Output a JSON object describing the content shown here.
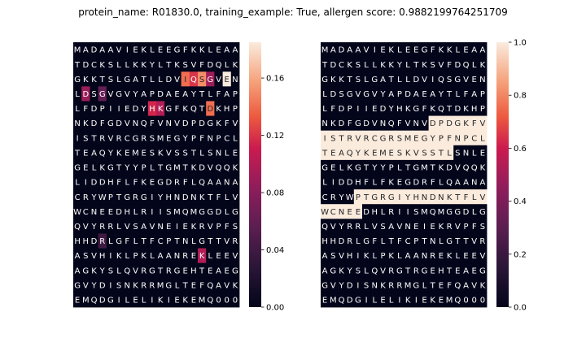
{
  "title": "protein_name: R01830.0, training_example: True, allergen score: 0.9882199764251709",
  "chart_data": [
    {
      "type": "heatmap",
      "name": "attention",
      "rows": [
        "MADAAVIEKLEEGFKKLEAA",
        "TDCKSLLKKYLTKSVFDQLK",
        "GKKTSLGATLLDVIQSGVEN",
        "LDSGVGVYAPDAEAYTLFAP",
        "LFDPIIEDYHKGFKQTDKHP",
        "NKDFGDVNQFVNVDPDGKFV",
        "ISTRVRCGRSMEGYPFNPCL",
        "TEAQYKEMESKVSSTLSNLE",
        "GELKGTYYPLTGMTKDVQQK",
        "LIDDHFLFKEGDRFLQAANA",
        "CRYWPTGRGIYHNDNKTFLV",
        "WCNEEDHLRIISMQMGGDLG",
        "QVYRRLVSAVNEIEKRVPFS",
        "HHDRLGFLTFCPTNLGTTVR",
        "ASVHIKLPKLAANREKLEEV",
        "AGKYSLQVRGTRGEHTEAEG",
        "GVYDISNKRRMGLTEFQAVK",
        "EMQDGILELIKIEKEMQ000"
      ],
      "highlights": [
        {
          "row": 2,
          "col": 13,
          "value": 0.14
        },
        {
          "row": 2,
          "col": 14,
          "value": 0.12
        },
        {
          "row": 2,
          "col": 15,
          "value": 0.15
        },
        {
          "row": 2,
          "col": 16,
          "value": 0.09
        },
        {
          "row": 2,
          "col": 18,
          "value": 0.185
        },
        {
          "row": 3,
          "col": 1,
          "value": 0.09
        },
        {
          "row": 3,
          "col": 3,
          "value": 0.06
        },
        {
          "row": 4,
          "col": 9,
          "value": 0.115
        },
        {
          "row": 4,
          "col": 10,
          "value": 0.1
        },
        {
          "row": 4,
          "col": 16,
          "value": 0.14
        },
        {
          "row": 13,
          "col": 3,
          "value": 0.04
        },
        {
          "row": 14,
          "col": 15,
          "value": 0.1
        }
      ],
      "colorbar": {
        "min": 0.0,
        "max": 0.185,
        "ticks": [
          "0.00",
          "0.04",
          "0.08",
          "0.12",
          "0.16"
        ],
        "tick_values": [
          0,
          0.04,
          0.08,
          0.12,
          0.16
        ]
      }
    },
    {
      "type": "heatmap",
      "name": "labels",
      "rows": [
        "MADAAVIEKLEEGFKKLEAA",
        "TDCKSLLKKYLTKSVFDQLK",
        "GKKTSLGATLLDVIQSGVEN",
        "LDSGVGVYAPDAEAYTLFAP",
        "LFDPIIEDYHKGFKQTDKHP",
        "NKDFGDVNQFVNVDPDGKFV",
        "ISTRVRCGRSMEGYPFNPCL",
        "TEAQYKEMESKVSSTLSNLE",
        "GELKGTYYPLTGMTKDVQQK",
        "LIDDHFLFKEGDRFLQAANA",
        "CRYWPTGRGIYHNDNKTFLV",
        "WCNEEDHLRIISMQMGGDLG",
        "QVYRRLVSAVNEIEKRVPFS",
        "HHDRLGFLTFCPTNLGTTVR",
        "ASVHIKLPKLAANREKLEEV",
        "AGKYSLQVRGTRGEHTEAEG",
        "GVYDISNKRRMGLTEFQAVK",
        "EMQDGILELIKIEKEMQ000"
      ],
      "highlight_ranges": [
        {
          "row": 5,
          "from": 13,
          "to": 19,
          "value": 1.0
        },
        {
          "row": 6,
          "from": 0,
          "to": 19,
          "value": 1.0
        },
        {
          "row": 7,
          "from": 0,
          "to": 15,
          "value": 1.0
        },
        {
          "row": 10,
          "from": 4,
          "to": 19,
          "value": 1.0
        },
        {
          "row": 11,
          "from": 0,
          "to": 4,
          "value": 1.0
        }
      ],
      "colorbar": {
        "min": 0.0,
        "max": 1.0,
        "ticks": [
          "0.0",
          "0.2",
          "0.4",
          "0.6",
          "0.8",
          "1.0"
        ],
        "tick_values": [
          0,
          0.2,
          0.4,
          0.6,
          0.8,
          1.0
        ]
      }
    }
  ]
}
